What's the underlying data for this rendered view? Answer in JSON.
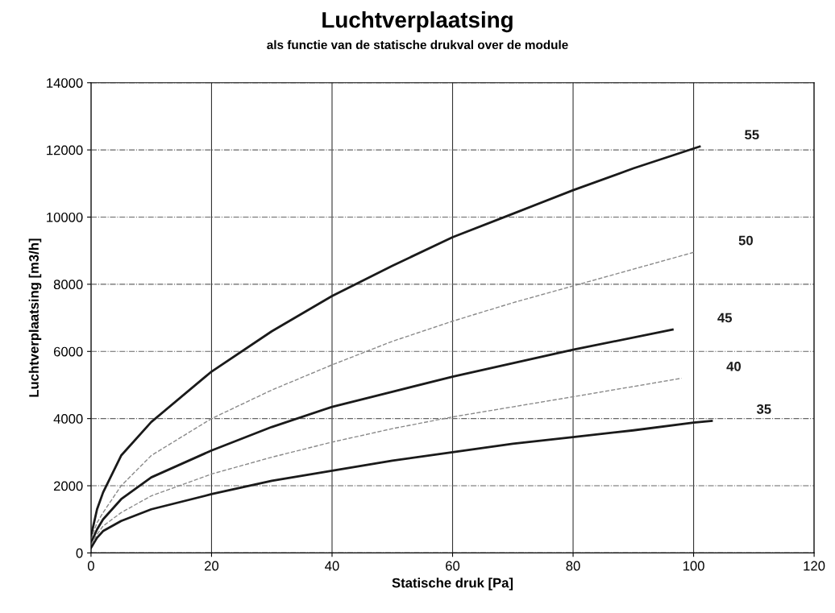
{
  "chart_data": {
    "type": "line",
    "title": "Luchtverplaatsing",
    "subtitle": "als functie van de statische drukval over de module",
    "xlabel": "Statische druk [Pa]",
    "ylabel": "Luchtverplaatsing [m3/h]",
    "xlim": [
      0,
      120
    ],
    "ylim": [
      0,
      14000
    ],
    "xticks": [
      0,
      20,
      40,
      60,
      80,
      100,
      120
    ],
    "yticks": [
      0,
      2000,
      4000,
      6000,
      8000,
      10000,
      12000,
      14000
    ],
    "grid": true,
    "marker": "none",
    "series": [
      {
        "name": "55",
        "color": "#1a1a1a",
        "line_style": "solid",
        "x": [
          0,
          1,
          2,
          5,
          10,
          20,
          30,
          40,
          50,
          60,
          70,
          80,
          90,
          101
        ],
        "values": [
          500,
          1300,
          1800,
          2900,
          3900,
          5400,
          6600,
          7650,
          8550,
          9400,
          10100,
          10800,
          11450,
          12100
        ]
      },
      {
        "name": "50",
        "color": "#8a8a8a",
        "line_style": "dashed",
        "x": [
          0,
          1,
          2,
          5,
          10,
          20,
          30,
          40,
          50,
          60,
          70,
          80,
          90,
          100
        ],
        "values": [
          400,
          900,
          1200,
          2000,
          2900,
          4000,
          4850,
          5600,
          6300,
          6900,
          7450,
          7950,
          8450,
          8950
        ]
      },
      {
        "name": "45",
        "color": "#1a1a1a",
        "line_style": "solid",
        "x": [
          0,
          1,
          2,
          5,
          10,
          20,
          30,
          40,
          50,
          60,
          70,
          80,
          96.5
        ],
        "values": [
          300,
          700,
          1000,
          1600,
          2250,
          3050,
          3750,
          4350,
          4800,
          5250,
          5650,
          6050,
          6650
        ]
      },
      {
        "name": "40",
        "color": "#8a8a8a",
        "line_style": "dashed",
        "x": [
          0,
          1,
          2,
          5,
          10,
          20,
          30,
          40,
          50,
          60,
          70,
          80,
          98
        ],
        "values": [
          250,
          550,
          800,
          1200,
          1700,
          2350,
          2850,
          3300,
          3700,
          4050,
          4350,
          4650,
          5200
        ]
      },
      {
        "name": "35",
        "color": "#1a1a1a",
        "line_style": "solid",
        "x": [
          0,
          1,
          2,
          5,
          10,
          20,
          30,
          40,
          50,
          60,
          70,
          80,
          90,
          100,
          103
        ],
        "values": [
          150,
          450,
          650,
          950,
          1300,
          1750,
          2150,
          2450,
          2750,
          3000,
          3250,
          3450,
          3650,
          3880,
          3930
        ]
      }
    ]
  }
}
